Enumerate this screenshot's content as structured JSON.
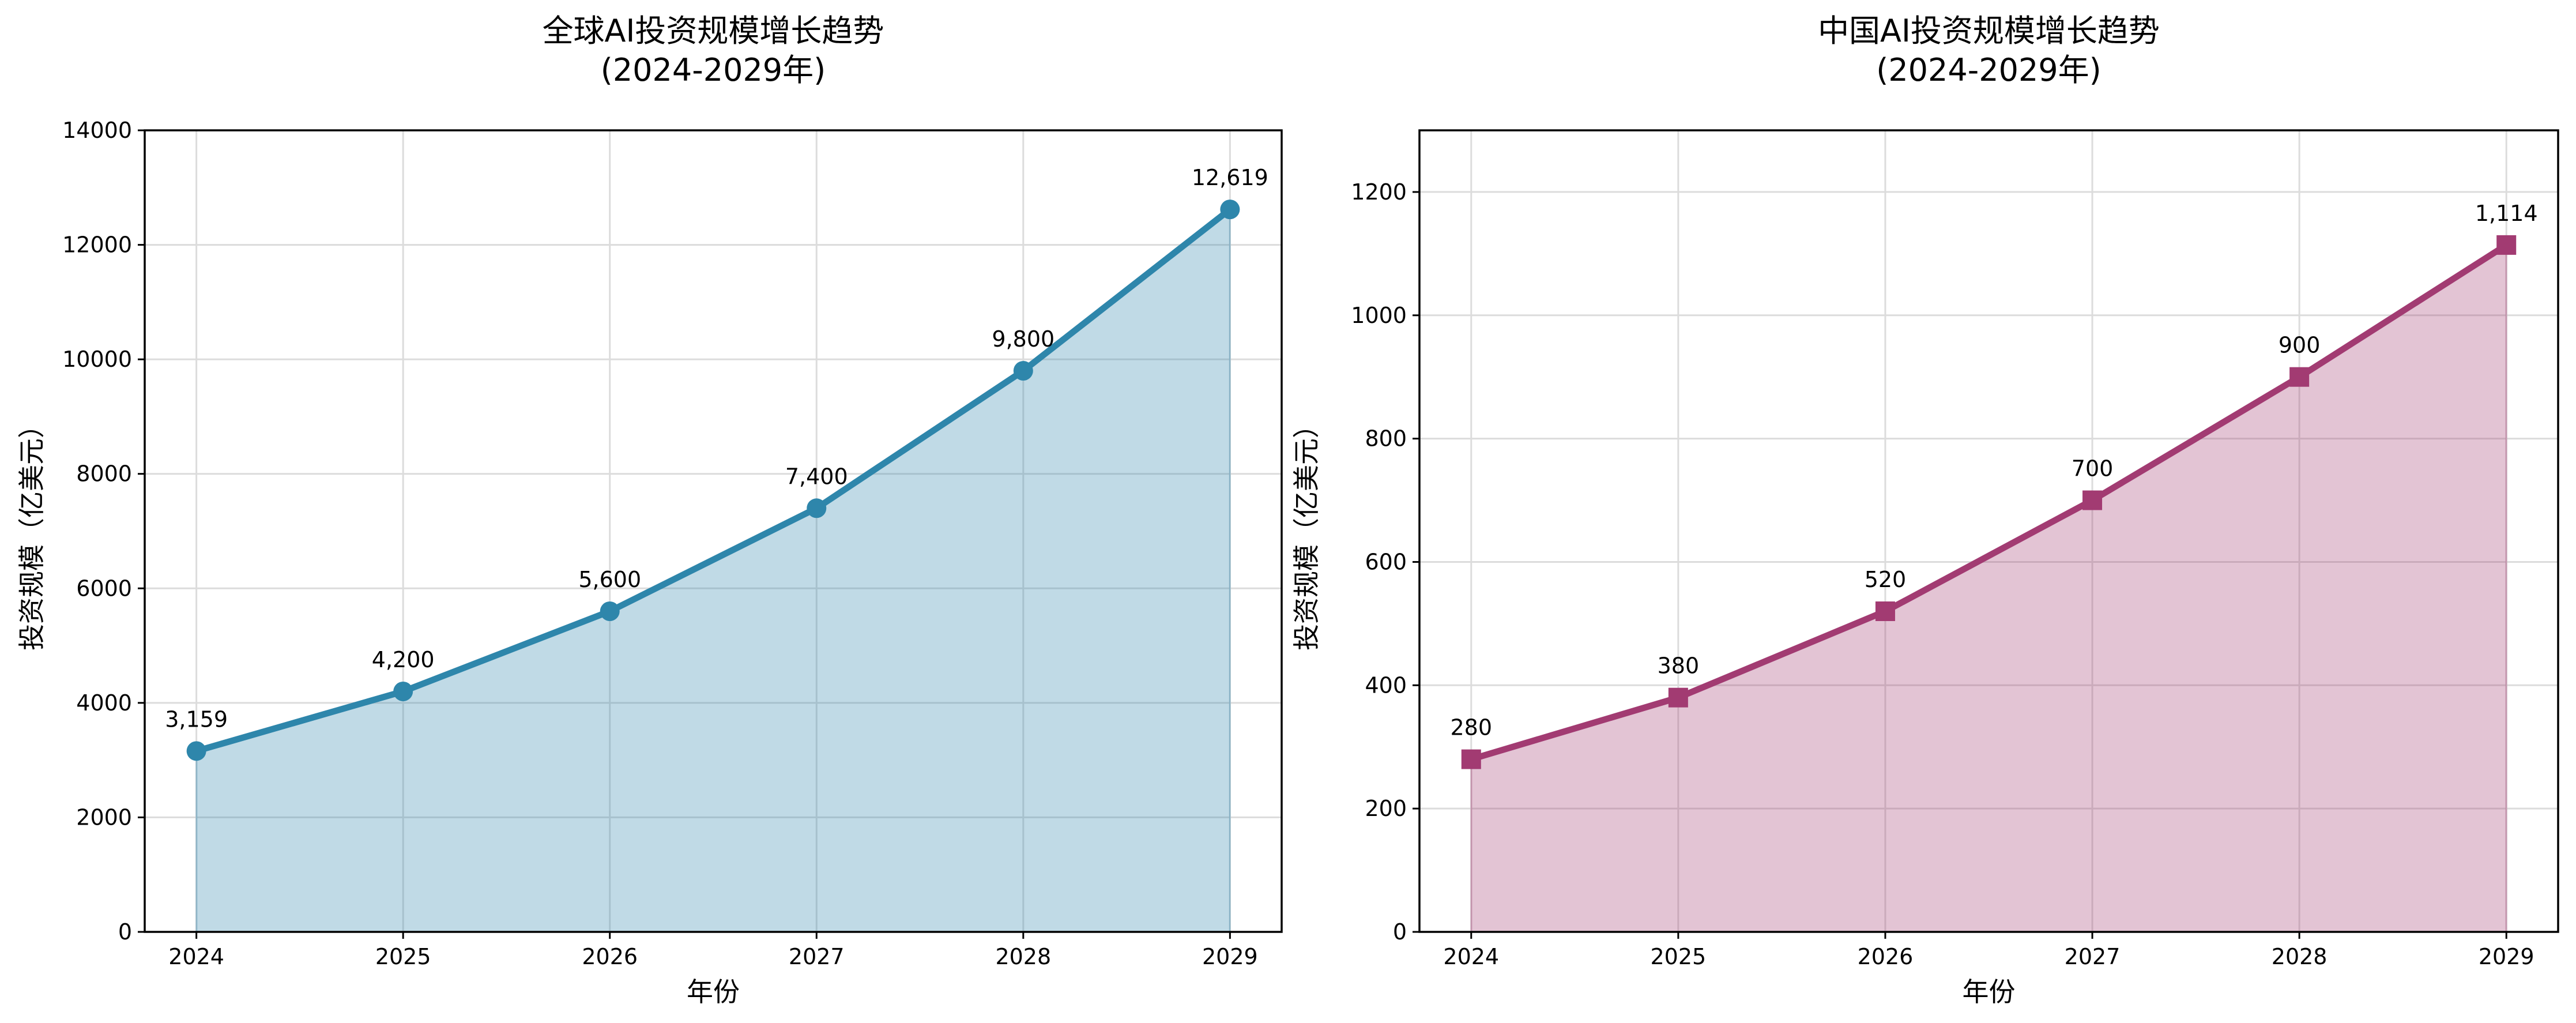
{
  "chart_data": [
    {
      "type": "area",
      "title_line1": "全球AI投资规模增长趋势",
      "title_line2": "(2024-2029年)",
      "xlabel": "年份",
      "ylabel": "投资规模（亿美元）",
      "x": [
        2024,
        2025,
        2026,
        2027,
        2028,
        2029
      ],
      "values": [
        3159,
        4200,
        5600,
        7400,
        9800,
        12619
      ],
      "data_labels": [
        "3,159",
        "4,200",
        "5,600",
        "7,400",
        "9,800",
        "12,619"
      ],
      "xlim": [
        2023.75,
        2029.25
      ],
      "ylim": [
        0,
        14000
      ],
      "yticks": [
        0,
        2000,
        4000,
        6000,
        8000,
        10000,
        12000,
        14000
      ],
      "marker": "circle",
      "color": "#2E86AB",
      "grid": true
    },
    {
      "type": "area",
      "title_line1": "中国AI投资规模增长趋势",
      "title_line2": "(2024-2029年)",
      "xlabel": "年份",
      "ylabel": "投资规模（亿美元）",
      "x": [
        2024,
        2025,
        2026,
        2027,
        2028,
        2029
      ],
      "values": [
        280,
        380,
        520,
        700,
        900,
        1114
      ],
      "data_labels": [
        "280",
        "380",
        "520",
        "700",
        "900",
        "1,114"
      ],
      "xlim": [
        2023.75,
        2029.25
      ],
      "ylim": [
        0,
        1300
      ],
      "yticks": [
        0,
        200,
        400,
        600,
        800,
        1000,
        1200
      ],
      "marker": "square",
      "color": "#A23B72",
      "grid": true
    }
  ]
}
